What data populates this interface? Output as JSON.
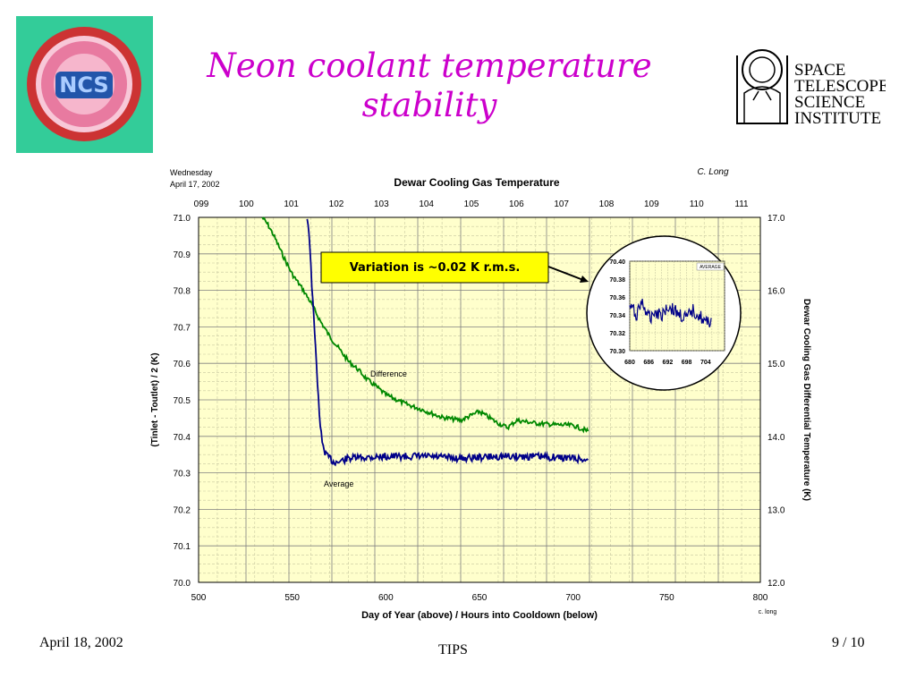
{
  "slide": {
    "title": "Neon coolant temperature stability",
    "footer_date": "April 18, 2002",
    "footer_center": "TIPS",
    "footer_page": "9 / 10",
    "logo_left_text": "NCS",
    "logo_right_lines": [
      "SPACE",
      "TELESCOPE",
      "SCIENCE",
      "INSTITUTE"
    ],
    "accent_color": "#cc00cc"
  },
  "chart_data": [
    {
      "type": "line",
      "title": "Dewar Cooling Gas Temperature",
      "date_line1": "Wednesday",
      "date_line2": "April 17, 2002",
      "author": "C. Long",
      "credit": "c. long",
      "xlabel": "Day of Year (above) / Hours into Cooldown (below)",
      "ylabel_left": "(Tinlet - Toutlet) / 2  (K)",
      "ylabel_right": "Dewar Cooling Gas Differential Temperature (K)",
      "xlim": [
        500,
        800
      ],
      "ylim_left": [
        70.0,
        71.0
      ],
      "ylim_right": [
        12.0,
        17.0
      ],
      "x_ticks": [
        "500",
        "550",
        "600",
        "650",
        "700",
        "750",
        "800"
      ],
      "x_top_ticks": [
        "099",
        "100",
        "101",
        "102",
        "103",
        "104",
        "105",
        "106",
        "107",
        "108",
        "109",
        "110",
        "111"
      ],
      "y_left_ticks": [
        "70.0",
        "70.1",
        "70.2",
        "70.3",
        "70.4",
        "70.5",
        "70.6",
        "70.7",
        "70.8",
        "70.9",
        "71.0"
      ],
      "y_right_ticks": [
        "12.0",
        "13.0",
        "14.0",
        "15.0",
        "16.0",
        "17.0"
      ],
      "grid": true,
      "background_color": "#ffffcc",
      "annotation": "Variation is ~0.02 K r.m.s.",
      "series": [
        {
          "name": "Difference",
          "axis": "right",
          "color": "#008800",
          "x": [
            534,
            537,
            540,
            545,
            550,
            555,
            560,
            565,
            570,
            575,
            580,
            585,
            590,
            595,
            600,
            610,
            620,
            630,
            640,
            645,
            650,
            655,
            660,
            665,
            670,
            680,
            690,
            700,
            708
          ],
          "y": [
            17.0,
            16.9,
            16.76,
            16.48,
            16.22,
            16.04,
            15.83,
            15.58,
            15.37,
            15.2,
            15.03,
            14.92,
            14.78,
            14.68,
            14.57,
            14.45,
            14.36,
            14.26,
            14.22,
            14.28,
            14.34,
            14.26,
            14.18,
            14.12,
            14.22,
            14.18,
            14.16,
            14.15,
            14.07
          ]
        },
        {
          "name": "Average",
          "axis": "left",
          "color": "#000088",
          "x": [
            558,
            559,
            560,
            561,
            562,
            563,
            564,
            565,
            566,
            568,
            570,
            572,
            575,
            580,
            600,
            620,
            640,
            660,
            680,
            700,
            708
          ],
          "y": [
            71.0,
            70.96,
            70.86,
            70.77,
            70.68,
            70.6,
            70.5,
            70.43,
            70.38,
            70.35,
            70.34,
            70.33,
            70.33,
            70.34,
            70.345,
            70.345,
            70.34,
            70.345,
            70.345,
            70.34,
            70.335
          ]
        }
      ]
    },
    {
      "type": "line",
      "title": "",
      "legend_label": "AVERAGE",
      "xlim": [
        680,
        710
      ],
      "ylim": [
        70.3,
        70.4
      ],
      "x_ticks": [
        "680",
        "686",
        "692",
        "698",
        "704"
      ],
      "y_ticks": [
        "70.40",
        "70.38",
        "70.36",
        "70.34",
        "70.32",
        "70.30"
      ],
      "grid": true,
      "series": [
        {
          "color": "#000088",
          "x": [
            680,
            682,
            684,
            686,
            688,
            690,
            692,
            694,
            696,
            698,
            700,
            702,
            704,
            706
          ],
          "y": [
            70.35,
            70.34,
            70.355,
            70.335,
            70.345,
            70.34,
            70.35,
            70.345,
            70.34,
            70.335,
            70.345,
            70.34,
            70.33,
            70.335
          ]
        }
      ]
    }
  ]
}
